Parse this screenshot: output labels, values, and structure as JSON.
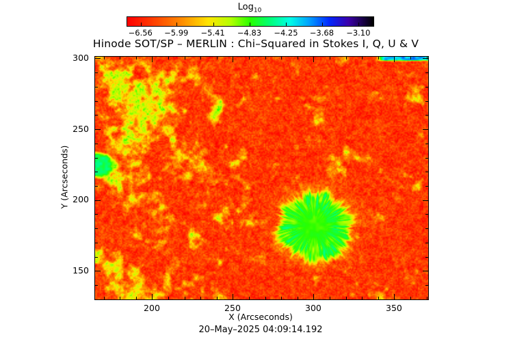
{
  "title": "Hinode SOT/SP – MERLIN : Chi–Squared in Stokes I, Q, U & V",
  "timestamp": "20–May–2025 04:09:14.192",
  "colorbar": {
    "label": "Log",
    "label_subscript": "10",
    "tick_labels": [
      "−6.56",
      "−5.99",
      "−5.41",
      "−4.83",
      "−4.25",
      "−3.68",
      "−3.10"
    ],
    "range": [
      -6.78,
      -2.87
    ]
  },
  "chart_data": {
    "type": "heatmap",
    "title": "Hinode SOT/SP – MERLIN : Chi–Squared in Stokes I, Q, U & V",
    "xlabel": "X (Arcseconds)",
    "ylabel": "Y (Arcseconds)",
    "xlim": [
      164.4,
      370.8
    ],
    "ylim": [
      130.2,
      301.4
    ],
    "x_ticks": [
      200,
      250,
      300,
      350
    ],
    "y_ticks": [
      150,
      200,
      250,
      300
    ],
    "minor_tick_step": 10,
    "grid": false,
    "colorbar_label": "Log10",
    "colorbar_ticks": [
      -6.56,
      -5.99,
      -5.41,
      -4.83,
      -4.25,
      -3.68,
      -3.1
    ],
    "value_range": [
      -6.78,
      -2.87
    ],
    "colormap": "rainbow: red(low) -> orange -> yellow -> green -> cyan -> blue -> black(high)",
    "background_value": -6.42,
    "features": [
      {
        "name": "sunspot-disk",
        "type": "disk",
        "x": 300,
        "y": 181.5,
        "radius": 23,
        "value": -4.8,
        "description": "large green circular region (sunspot) with filamentary yellow rim"
      },
      {
        "name": "left-edge-green-patch",
        "type": "ellipse",
        "x": 166,
        "y": 225,
        "rx": 9,
        "ry": 8,
        "value": -4.6,
        "description": "bright green patch touching left edge"
      },
      {
        "name": "top-right-edge-strip",
        "type": "strip",
        "x_start": 340,
        "x_end": 370.8,
        "thickness": 2.5,
        "value": -4.0,
        "description": "cyan-green strip along top edge at right"
      },
      {
        "name": "magnetic-network",
        "type": "texture",
        "value": -5.4,
        "description": "yellow mottled network, densest in upper-left half"
      }
    ]
  }
}
